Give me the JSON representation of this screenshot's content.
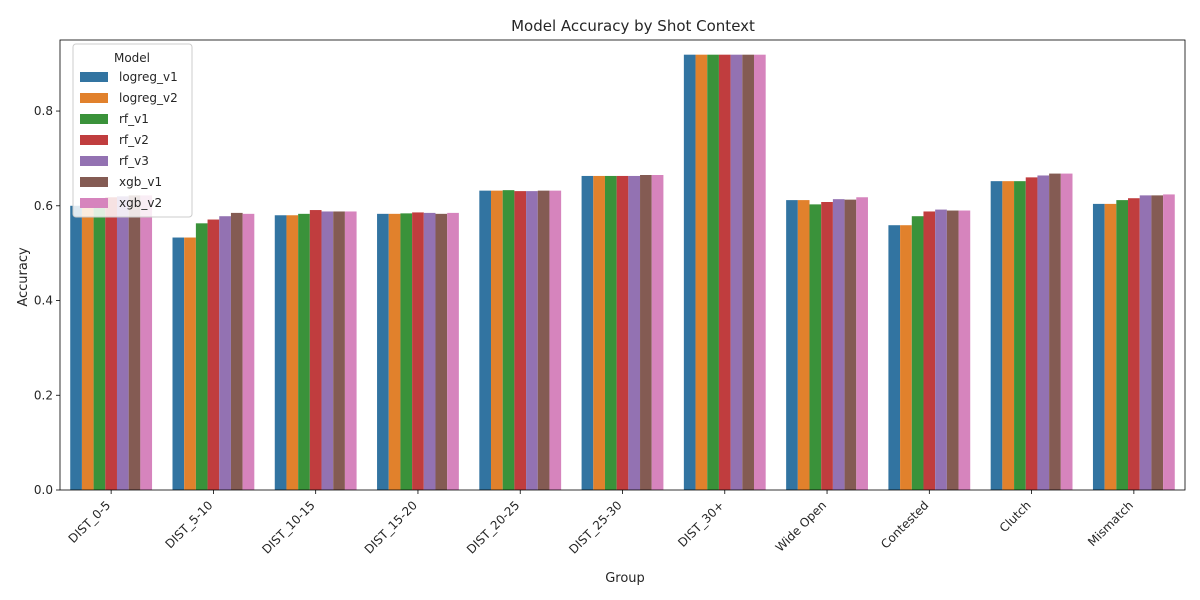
{
  "chart_data": {
    "type": "bar",
    "title": "Model Accuracy by Shot Context",
    "xlabel": "Group",
    "ylabel": "Accuracy",
    "ylim": [
      0,
      0.95
    ],
    "yticks": [
      "0.0",
      "0.2",
      "0.4",
      "0.6",
      "0.8"
    ],
    "grid": false,
    "legend": {
      "title": "Model",
      "placement": "top-left"
    },
    "categories": [
      "DIST_0-5",
      "DIST_5-10",
      "DIST_10-15",
      "DIST_15-20",
      "DIST_20-25",
      "DIST_25-30",
      "DIST_30+",
      "Wide Open",
      "Contested",
      "Clutch",
      "Mismatch"
    ],
    "series": [
      {
        "name": "logreg_v1",
        "color": "#3274a1",
        "values": [
          0.6,
          0.533,
          0.58,
          0.583,
          0.632,
          0.663,
          0.919,
          0.612,
          0.559,
          0.652,
          0.604
        ]
      },
      {
        "name": "logreg_v2",
        "color": "#e1812c",
        "values": [
          0.6,
          0.533,
          0.58,
          0.583,
          0.632,
          0.663,
          0.919,
          0.612,
          0.559,
          0.652,
          0.604
        ]
      },
      {
        "name": "rf_v1",
        "color": "#3a923a",
        "values": [
          0.605,
          0.563,
          0.583,
          0.584,
          0.633,
          0.663,
          0.919,
          0.603,
          0.578,
          0.652,
          0.612
        ]
      },
      {
        "name": "rf_v2",
        "color": "#c03d3e",
        "values": [
          0.618,
          0.571,
          0.591,
          0.586,
          0.631,
          0.663,
          0.919,
          0.608,
          0.588,
          0.66,
          0.616
        ]
      },
      {
        "name": "rf_v3",
        "color": "#9372b2",
        "values": [
          0.62,
          0.578,
          0.588,
          0.585,
          0.631,
          0.663,
          0.919,
          0.614,
          0.592,
          0.664,
          0.622
        ]
      },
      {
        "name": "xgb_v1",
        "color": "#845b53",
        "values": [
          0.622,
          0.585,
          0.588,
          0.583,
          0.632,
          0.665,
          0.919,
          0.613,
          0.59,
          0.668,
          0.622
        ]
      },
      {
        "name": "xgb_v2",
        "color": "#d684bd",
        "values": [
          0.622,
          0.583,
          0.588,
          0.585,
          0.632,
          0.665,
          0.919,
          0.618,
          0.59,
          0.668,
          0.624
        ]
      }
    ]
  }
}
